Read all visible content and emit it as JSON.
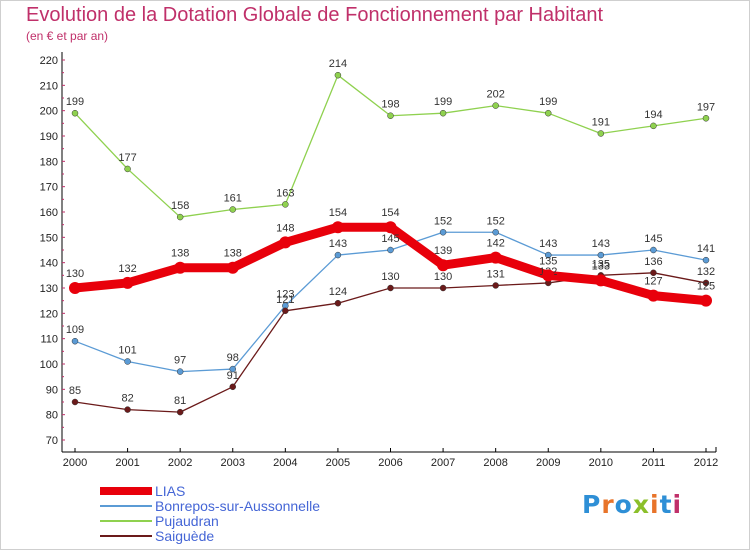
{
  "header": {
    "title": "Evolution de la Dotation Globale de Fonctionnement par Habitant",
    "subtitle": "(en € et par an)"
  },
  "logo": {
    "text": "Proxiti",
    "colors": [
      "#2e8fd6",
      "#e8742a",
      "#2e8fd6",
      "#8bbf2a",
      "#e8742a",
      "#2e8fd6",
      "#c0306a"
    ]
  },
  "colors": {
    "title": "#c0306a",
    "axis": "#000000",
    "grid_tick": "#c0306a",
    "legend_text": "#4566d6"
  },
  "chart_data": {
    "type": "line",
    "title": "Evolution de la Dotation Globale de Fonctionnement par Habitant",
    "subtitle": "(en € et par an)",
    "xlabel": "",
    "ylabel": "",
    "x": [
      "2000",
      "2001",
      "2002",
      "2003",
      "2004",
      "2005",
      "2006",
      "2007",
      "2008",
      "2009",
      "2010",
      "2011",
      "2012"
    ],
    "ylim": [
      70,
      220
    ],
    "yticks": [
      70,
      80,
      90,
      100,
      110,
      120,
      130,
      140,
      150,
      160,
      170,
      180,
      190,
      200,
      210,
      220
    ],
    "grid": false,
    "legend_position": "bottom-left",
    "series": [
      {
        "name": "LIAS",
        "color": "#e8000b",
        "values": [
          130,
          132,
          138,
          138,
          148,
          154,
          154,
          139,
          142,
          135,
          133,
          127,
          125
        ]
      },
      {
        "name": "Bonrepos-sur-Aussonnelle",
        "color": "#5b9bd5",
        "values": [
          109,
          101,
          97,
          98,
          123,
          143,
          145,
          152,
          152,
          143,
          143,
          145,
          141
        ]
      },
      {
        "name": "Pujaudran",
        "color": "#8fd14f",
        "values": [
          199,
          177,
          158,
          161,
          163,
          214,
          198,
          199,
          202,
          199,
          191,
          194,
          197
        ]
      },
      {
        "name": "Saiguède",
        "color": "#6b1a1a",
        "values": [
          85,
          82,
          81,
          91,
          121,
          124,
          130,
          130,
          131,
          132,
          135,
          136,
          132
        ]
      }
    ]
  }
}
